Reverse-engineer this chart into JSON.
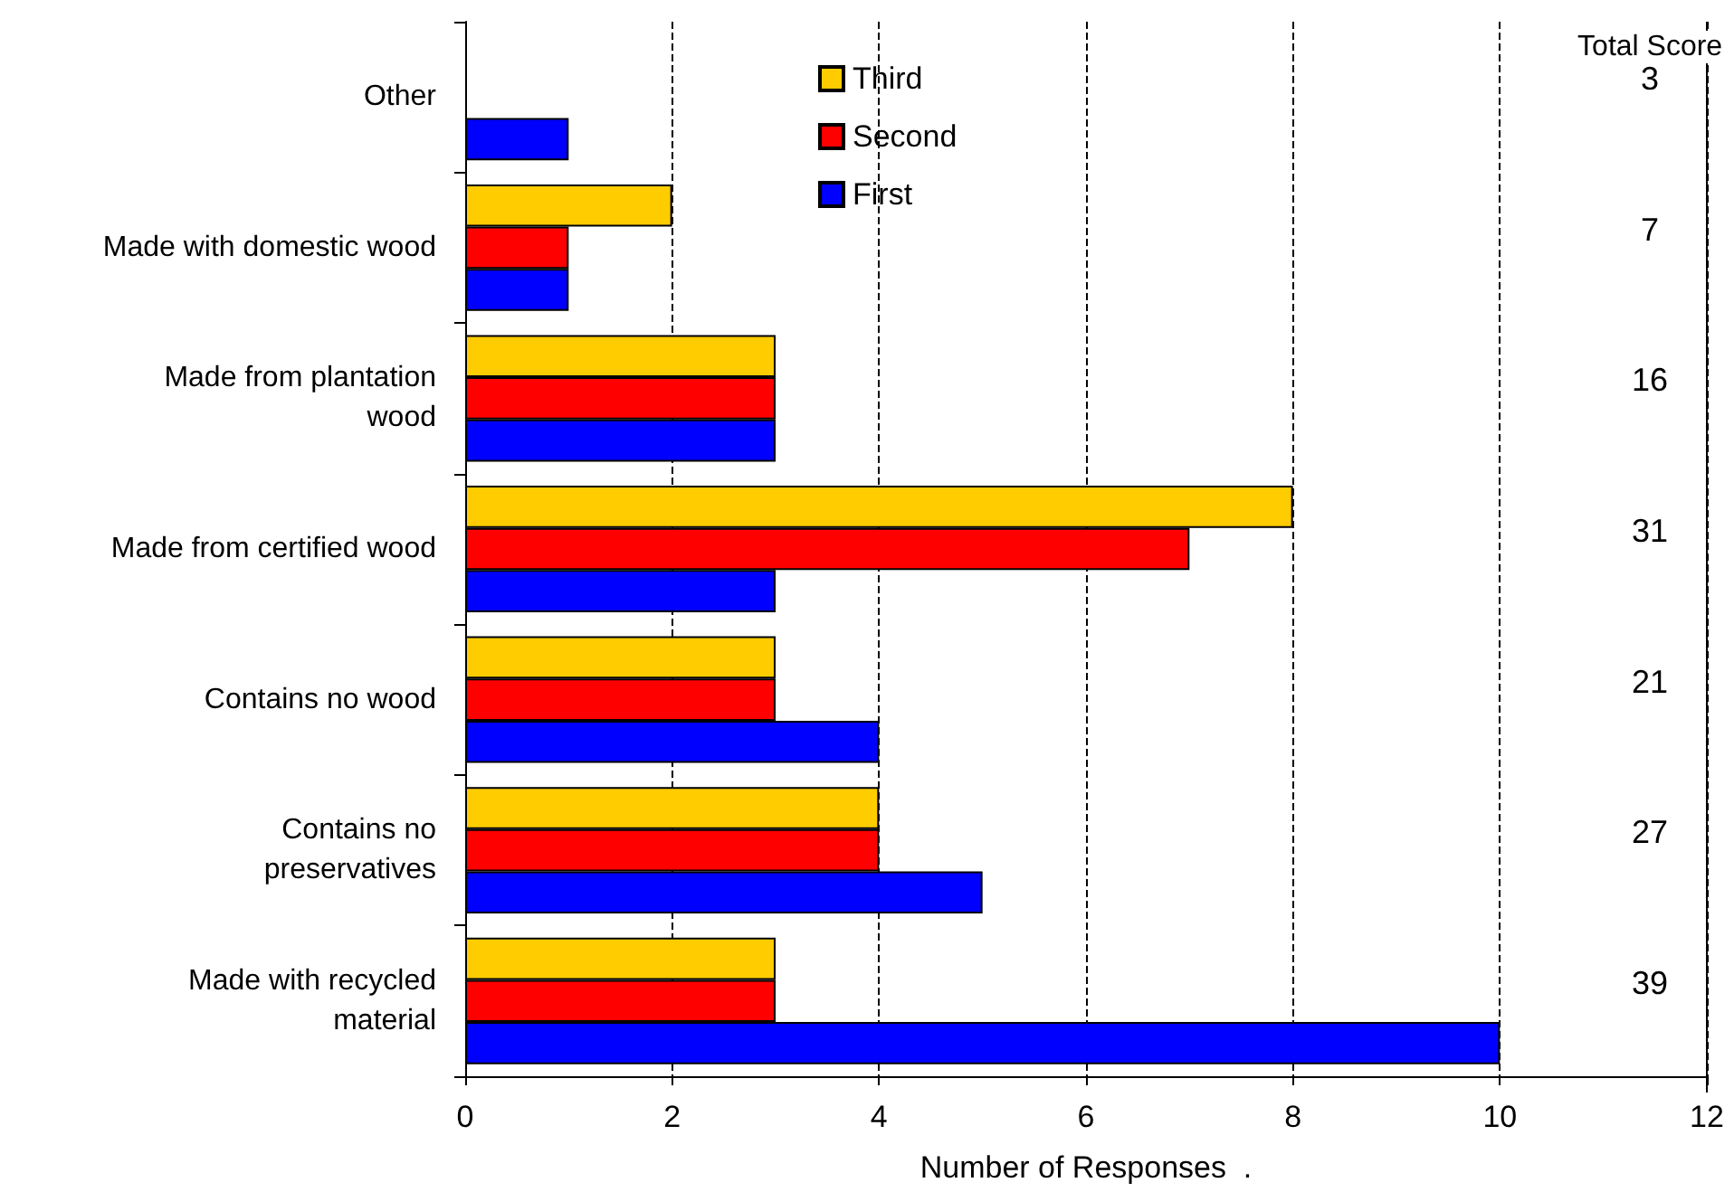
{
  "chart_data": {
    "type": "bar",
    "orientation": "horizontal",
    "xlabel": "Number of Responses  .",
    "categories": [
      "Other",
      "Made with domestic wood",
      "Made from plantation wood",
      "Made from certified wood",
      "Contains no wood",
      "Contains no preservatives",
      "Made with recycled material"
    ],
    "series": [
      {
        "name": "Third",
        "color": "#ffcc00",
        "values": [
          null,
          2,
          3,
          8,
          3,
          4,
          3
        ]
      },
      {
        "name": "Second",
        "color": "#ff0000",
        "values": [
          null,
          1,
          3,
          7,
          3,
          4,
          3
        ]
      },
      {
        "name": "First",
        "color": "#0000ff",
        "values": [
          1,
          1,
          3,
          3,
          4,
          5,
          10
        ]
      }
    ],
    "xlim": [
      0,
      12
    ],
    "xticks": [
      0,
      2,
      4,
      6,
      8,
      10,
      12
    ],
    "grid": "x",
    "legend": "top",
    "annotations": [
      "Total Score",
      "3",
      "7",
      "16",
      "31",
      "21",
      "27",
      "39"
    ]
  }
}
